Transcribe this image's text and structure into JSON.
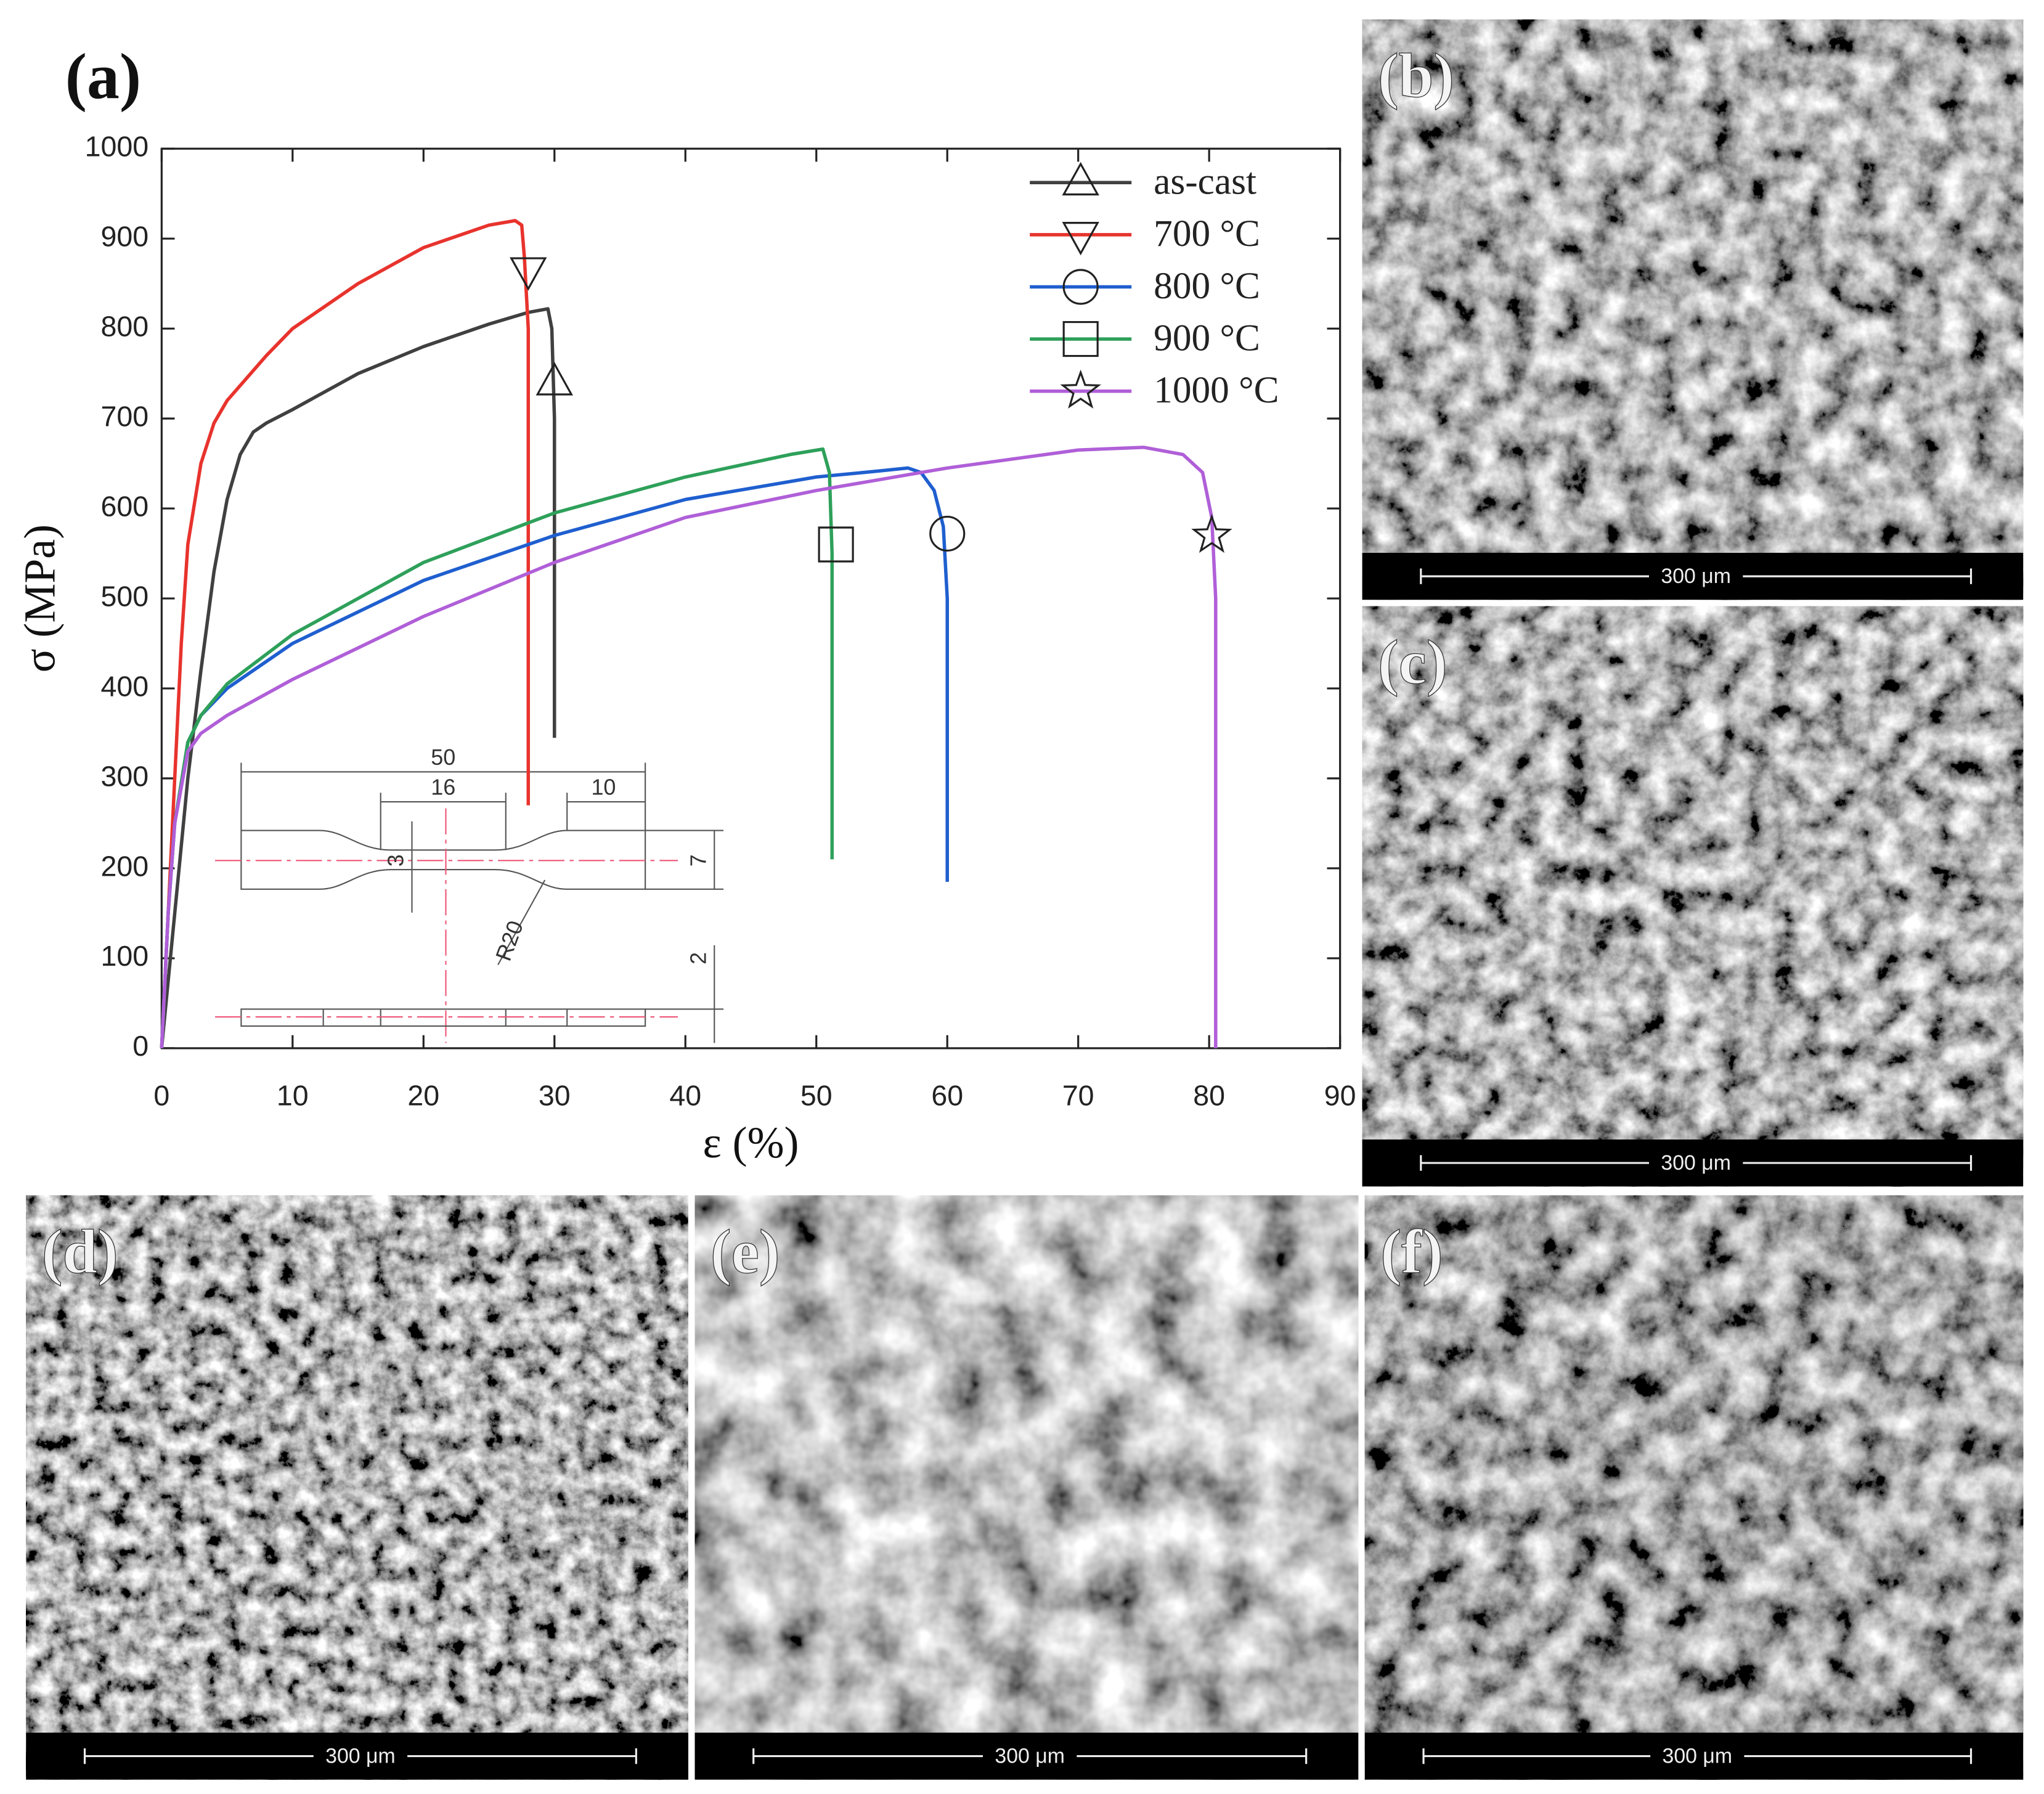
{
  "chart_data": {
    "type": "line",
    "title": "(a)",
    "x_label": "ε (%)",
    "y_label": "σ (MPa)",
    "xlim": [
      0,
      90
    ],
    "ylim": [
      0,
      1000
    ],
    "xticks": [
      0,
      10,
      20,
      30,
      40,
      50,
      60,
      70,
      80,
      90
    ],
    "yticks": [
      0,
      100,
      200,
      300,
      400,
      500,
      600,
      700,
      800,
      900,
      1000
    ],
    "grid": false,
    "legend": "upper right",
    "series": [
      {
        "name": "as-cast",
        "color": "#404040",
        "marker": "triangle-up",
        "x": [
          0,
          1,
          2,
          3,
          4,
          5,
          6,
          7,
          8,
          10,
          15,
          20,
          25,
          28,
          29.5,
          29.8,
          30,
          30
        ],
        "values": [
          0,
          150,
          300,
          420,
          530,
          610,
          660,
          685,
          695,
          710,
          750,
          780,
          805,
          818,
          822,
          800,
          700,
          345
        ],
        "marker_x": 30,
        "marker_y": 740
      },
      {
        "name": "700 °C",
        "color": "#e8332d",
        "marker": "triangle-down",
        "x": [
          0,
          0.5,
          1,
          1.5,
          2,
          3,
          4,
          5,
          8,
          10,
          15,
          20,
          25,
          27,
          27.5,
          27.7,
          28,
          28
        ],
        "values": [
          0,
          150,
          300,
          450,
          560,
          650,
          695,
          720,
          770,
          800,
          850,
          890,
          915,
          920,
          915,
          880,
          800,
          270
        ],
        "marker_x": 28,
        "marker_y": 865
      },
      {
        "name": "800 °C",
        "color": "#1f5fcf",
        "marker": "circle",
        "x": [
          0,
          0.5,
          1,
          2,
          3,
          5,
          10,
          20,
          30,
          40,
          50,
          55,
          57,
          58,
          59,
          59.7,
          60,
          60
        ],
        "values": [
          0,
          150,
          250,
          340,
          370,
          400,
          450,
          520,
          570,
          610,
          635,
          642,
          645,
          640,
          620,
          580,
          500,
          185
        ],
        "marker_x": 60,
        "marker_y": 572
      },
      {
        "name": "900 °C",
        "color": "#2ea05a",
        "marker": "square",
        "x": [
          0,
          0.5,
          1,
          2,
          3,
          5,
          10,
          20,
          30,
          40,
          48,
          50.5,
          51,
          51.2,
          51.2
        ],
        "values": [
          0,
          150,
          250,
          340,
          370,
          405,
          460,
          540,
          595,
          635,
          660,
          666,
          640,
          550,
          210
        ],
        "marker_x": 51.5,
        "marker_y": 560
      },
      {
        "name": "1000 °C",
        "color": "#b05fd8",
        "marker": "star",
        "x": [
          0,
          0.5,
          1,
          2,
          3,
          5,
          10,
          20,
          30,
          40,
          50,
          60,
          70,
          75,
          78,
          79.5,
          80.2,
          80.5,
          80.5
        ],
        "values": [
          0,
          150,
          250,
          330,
          350,
          370,
          410,
          480,
          540,
          590,
          620,
          645,
          665,
          668,
          660,
          640,
          590,
          500,
          0
        ],
        "marker_x": 80.2,
        "marker_y": 570
      }
    ],
    "inset_labels": [
      "50",
      "16",
      "10",
      "3",
      "7",
      "R20",
      "2"
    ]
  },
  "panels": [
    {
      "label": "(b)",
      "scale_bar": "300 μm"
    },
    {
      "label": "(c)",
      "scale_bar": "300 μm"
    },
    {
      "label": "(d)",
      "scale_bar": "300 μm"
    },
    {
      "label": "(e)",
      "scale_bar": "300 μm"
    },
    {
      "label": "(f)",
      "scale_bar": "300 μm"
    }
  ]
}
